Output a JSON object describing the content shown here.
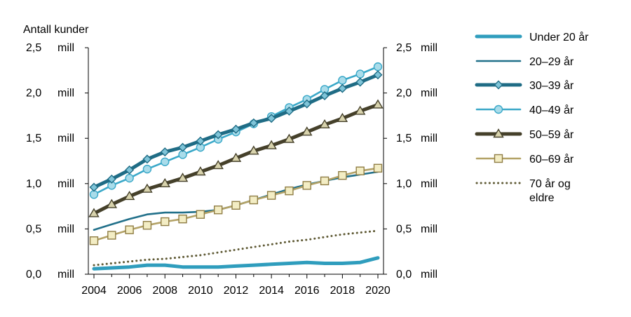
{
  "chart_data": {
    "type": "line",
    "ylabel": "Antall kunder",
    "x": [
      2004,
      2005,
      2006,
      2007,
      2008,
      2009,
      2010,
      2011,
      2012,
      2013,
      2014,
      2015,
      2016,
      2017,
      2018,
      2019,
      2020
    ],
    "x_tick_labels": [
      "2004",
      "2006",
      "2008",
      "2010",
      "2012",
      "2014",
      "2016",
      "2018",
      "2020"
    ],
    "ylim": [
      0,
      2.5
    ],
    "y_ticks": [
      {
        "value": 0.0,
        "label": "0,0",
        "unit": "mill"
      },
      {
        "value": 0.5,
        "label": "0,5",
        "unit": "mill"
      },
      {
        "value": 1.0,
        "label": "1,0",
        "unit": "mill"
      },
      {
        "value": 1.5,
        "label": "1,5",
        "unit": "mill"
      },
      {
        "value": 2.0,
        "label": "2,0",
        "unit": "mill"
      },
      {
        "value": 2.5,
        "label": "2,5",
        "unit": "mill"
      }
    ],
    "legend_position": "right",
    "series": [
      {
        "name": "Under 20 år",
        "color": "#2f9dbd",
        "style": "thick",
        "marker": "none",
        "values": [
          0.06,
          0.07,
          0.08,
          0.1,
          0.1,
          0.08,
          0.08,
          0.08,
          0.09,
          0.1,
          0.11,
          0.12,
          0.13,
          0.12,
          0.12,
          0.13,
          0.18
        ]
      },
      {
        "name": "20–29 år",
        "color": "#21708a",
        "style": "solid",
        "marker": "none",
        "values": [
          0.49,
          0.55,
          0.61,
          0.66,
          0.68,
          0.68,
          0.69,
          0.71,
          0.76,
          0.82,
          0.88,
          0.94,
          0.99,
          1.03,
          1.07,
          1.1,
          1.13
        ]
      },
      {
        "name": "30–39 år",
        "color": "#1f6c85",
        "style": "thick",
        "marker": "diamond",
        "values": [
          0.96,
          1.05,
          1.15,
          1.27,
          1.35,
          1.4,
          1.47,
          1.54,
          1.6,
          1.67,
          1.72,
          1.8,
          1.88,
          1.97,
          2.05,
          2.12,
          2.2
        ]
      },
      {
        "name": "40–49 år",
        "color": "#3aa8c8",
        "style": "solid",
        "marker": "circle",
        "values": [
          0.88,
          0.98,
          1.06,
          1.16,
          1.24,
          1.32,
          1.4,
          1.49,
          1.57,
          1.66,
          1.74,
          1.84,
          1.93,
          2.04,
          2.14,
          2.21,
          2.29
        ]
      },
      {
        "name": "50–59 år",
        "color": "#45402a",
        "style": "thick",
        "marker": "triangle",
        "values": [
          0.67,
          0.77,
          0.86,
          0.94,
          1.0,
          1.06,
          1.13,
          1.2,
          1.28,
          1.36,
          1.42,
          1.49,
          1.57,
          1.65,
          1.72,
          1.8,
          1.87
        ]
      },
      {
        "name": "60–69 år",
        "color": "#b3a266",
        "style": "solid",
        "marker": "square",
        "values": [
          0.37,
          0.43,
          0.49,
          0.54,
          0.58,
          0.61,
          0.66,
          0.71,
          0.76,
          0.82,
          0.87,
          0.92,
          0.98,
          1.03,
          1.09,
          1.14,
          1.17
        ]
      },
      {
        "name": "70 år og eldre",
        "name_lines": [
          "70 år og",
          "eldre"
        ],
        "color": "#5f5a35",
        "style": "dotted",
        "marker": "none",
        "values": [
          0.1,
          0.12,
          0.14,
          0.16,
          0.17,
          0.19,
          0.21,
          0.24,
          0.27,
          0.3,
          0.33,
          0.36,
          0.38,
          0.41,
          0.44,
          0.46,
          0.48
        ]
      }
    ]
  }
}
